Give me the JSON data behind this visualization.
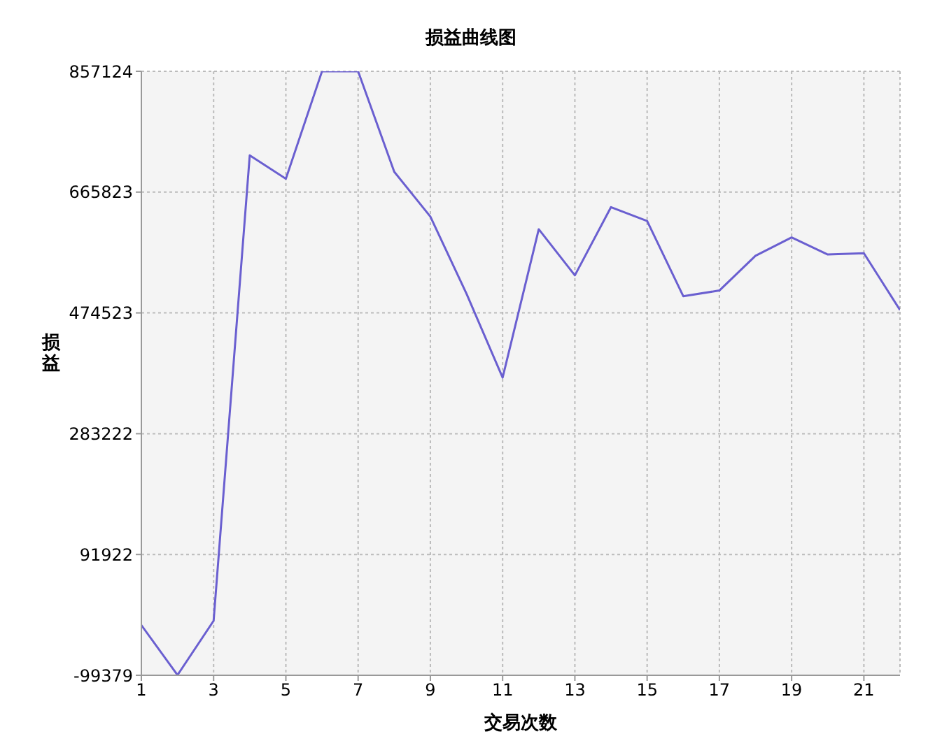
{
  "chart_data": {
    "type": "line",
    "title": "损益曲线图",
    "xlabel": "交易次数",
    "ylabel": "损益",
    "x": [
      1,
      2,
      3,
      4,
      5,
      6,
      7,
      8,
      9,
      10,
      11,
      12,
      13,
      14,
      15,
      16,
      17,
      18,
      19,
      20,
      21,
      22
    ],
    "series": [
      {
        "color": "#6a5fd0",
        "values": [
          -20000,
          -99000,
          -13000,
          724000,
          687000,
          857000,
          857000,
          698000,
          627000,
          505000,
          372000,
          607000,
          534000,
          642000,
          620000,
          501000,
          510000,
          565000,
          594000,
          567000,
          569000,
          479000
        ]
      }
    ],
    "xlim": [
      1,
      22
    ],
    "xticks": [
      1,
      3,
      5,
      7,
      9,
      11,
      13,
      15,
      17,
      19,
      21
    ],
    "ylim": [
      -99379,
      857124
    ],
    "yticks": [
      -99379,
      91922,
      283222,
      474523,
      665823,
      857124
    ],
    "grid": true,
    "line_style": "solid",
    "marker": "none",
    "legend": false
  }
}
